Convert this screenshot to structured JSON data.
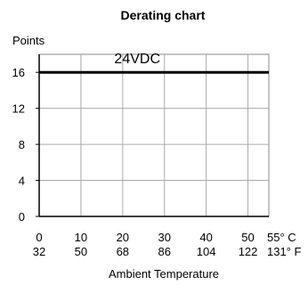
{
  "chart_data": {
    "type": "line",
    "title": "Derating chart",
    "ylabel": "Points",
    "xlabel": "Ambient Temperature",
    "ylim": [
      0,
      18
    ],
    "xlim": [
      0,
      55
    ],
    "yticks": [
      0,
      4,
      8,
      12,
      16
    ],
    "x_ticks": [
      {
        "c": 0,
        "label_c": "0",
        "label_f": "32"
      },
      {
        "c": 10,
        "label_c": "10",
        "label_f": "50"
      },
      {
        "c": 20,
        "label_c": "20",
        "label_f": "68"
      },
      {
        "c": 30,
        "label_c": "30",
        "label_f": "86"
      },
      {
        "c": 40,
        "label_c": "40",
        "label_f": "104"
      },
      {
        "c": 50,
        "label_c": "50",
        "label_f": "122"
      },
      {
        "c": 55,
        "label_c": "55° C",
        "label_f": "131° F"
      }
    ],
    "grid": true,
    "series": [
      {
        "name": "24VDC",
        "x": [
          0,
          55
        ],
        "y": [
          16,
          16
        ],
        "color": "#000000"
      }
    ]
  }
}
